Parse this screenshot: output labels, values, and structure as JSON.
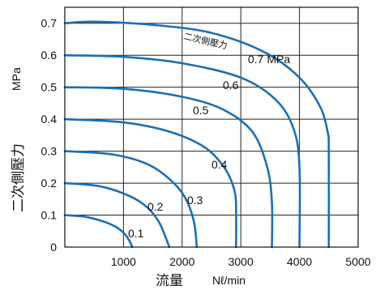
{
  "chart_data": {
    "type": "line",
    "title": "",
    "xlabel": "流量",
    "xlabel_unit": "Nℓ/min",
    "ylabel": "二次側壓力",
    "ylabel_unit": "MPa",
    "xlim": [
      0,
      5000
    ],
    "ylim": [
      0,
      0.75
    ],
    "x_ticks": [
      0,
      1000,
      2000,
      3000,
      4000,
      5000
    ],
    "x_tick_labels": [
      "",
      "1000",
      "2000",
      "3000",
      "4000",
      "5000"
    ],
    "y_ticks": [
      0,
      0.1,
      0.2,
      0.3,
      0.4,
      0.5,
      0.6,
      0.7
    ],
    "y_tick_labels": [
      "0",
      "0.1",
      "0.2",
      "0.3",
      "0.4",
      "0.5",
      "0.6",
      "0.7"
    ],
    "grid": true,
    "legend": "none",
    "line_color": "#1a6fb5",
    "annotation": "二次側壓力",
    "series": [
      {
        "label": "0.1",
        "x": [
          0,
          400,
          800,
          1000,
          1100,
          1150
        ],
        "y": [
          0.1,
          0.093,
          0.07,
          0.045,
          0.02,
          0
        ]
      },
      {
        "label": "0.2",
        "x": [
          0,
          600,
          1100,
          1400,
          1600,
          1720,
          1780
        ],
        "y": [
          0.2,
          0.19,
          0.16,
          0.125,
          0.08,
          0.03,
          0
        ]
      },
      {
        "label": "0.3",
        "x": [
          0,
          800,
          1400,
          1800,
          2050,
          2200,
          2250
        ],
        "y": [
          0.3,
          0.29,
          0.26,
          0.21,
          0.155,
          0.08,
          0
        ]
      },
      {
        "label": "0.4",
        "x": [
          0,
          1000,
          1800,
          2400,
          2750,
          2900,
          2920,
          2920
        ],
        "y": [
          0.4,
          0.39,
          0.36,
          0.31,
          0.24,
          0.17,
          0.1,
          0
        ]
      },
      {
        "label": "0.5",
        "x": [
          0,
          1000,
          2000,
          2700,
          3200,
          3450,
          3530,
          3530
        ],
        "y": [
          0.5,
          0.495,
          0.47,
          0.43,
          0.36,
          0.25,
          0.14,
          0
        ]
      },
      {
        "label": "0.6",
        "x": [
          0,
          1000,
          2000,
          3000,
          3600,
          3900,
          4000,
          4000
        ],
        "y": [
          0.6,
          0.595,
          0.575,
          0.53,
          0.46,
          0.37,
          0.25,
          0
        ]
      },
      {
        "label": "0.7 MPa",
        "x": [
          0,
          500,
          1500,
          2500,
          3400,
          4000,
          4350,
          4480,
          4500,
          4500
        ],
        "y": [
          0.7,
          0.705,
          0.695,
          0.67,
          0.61,
          0.53,
          0.44,
          0.36,
          0.3,
          0
        ]
      }
    ]
  }
}
